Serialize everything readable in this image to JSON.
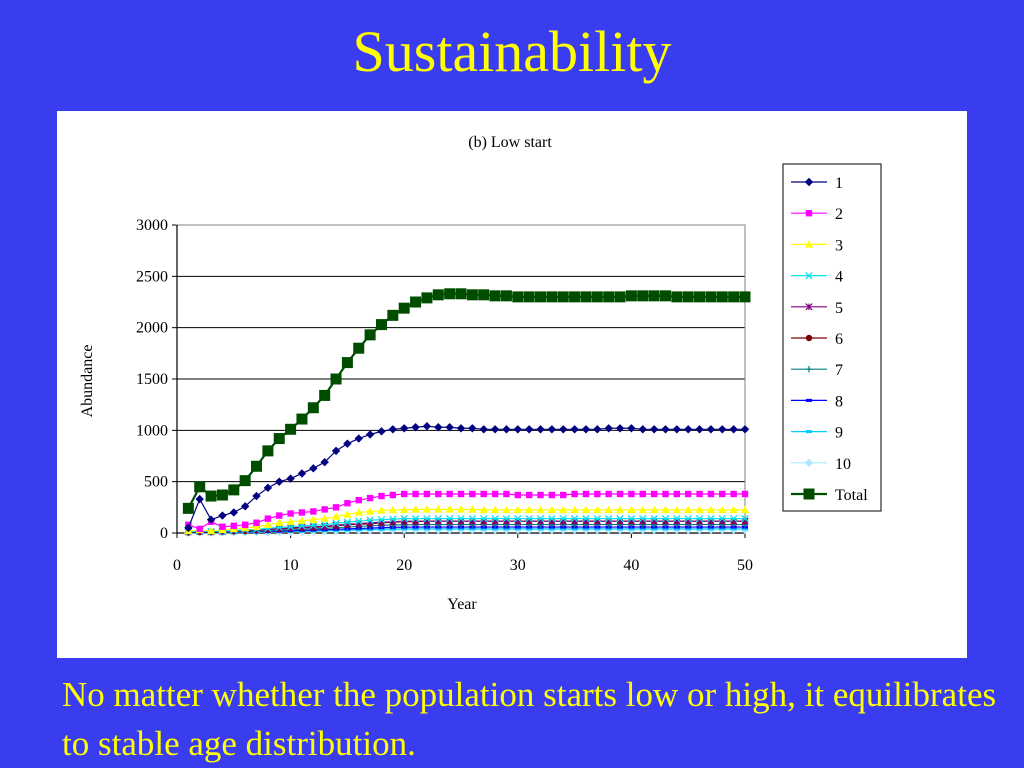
{
  "slide": {
    "title": "Sustainability",
    "caption": "No matter whether the population starts low or high, it equilibrates to  stable age distribution."
  },
  "chart_data": {
    "type": "line",
    "title": "(b) Low start",
    "xlabel": "Year",
    "ylabel": "Abundance",
    "xlim": [
      0,
      50
    ],
    "ylim": [
      0,
      3000
    ],
    "xticks": [
      0,
      10,
      20,
      30,
      40,
      50
    ],
    "yticks": [
      0,
      500,
      1000,
      1500,
      2000,
      2500,
      3000
    ],
    "grid": "horizontal",
    "legend": "right",
    "x": [
      1,
      2,
      3,
      4,
      5,
      6,
      7,
      8,
      9,
      10,
      11,
      12,
      13,
      14,
      15,
      16,
      17,
      18,
      19,
      20,
      21,
      22,
      23,
      24,
      25,
      26,
      27,
      28,
      29,
      30,
      31,
      32,
      33,
      34,
      35,
      36,
      37,
      38,
      39,
      40,
      41,
      42,
      43,
      44,
      45,
      46,
      47,
      48,
      49,
      50
    ],
    "series": [
      {
        "name": "1",
        "color": "#000080",
        "marker": "diamond",
        "values": [
          50,
          330,
          130,
          170,
          200,
          260,
          360,
          440,
          500,
          530,
          580,
          630,
          690,
          800,
          870,
          920,
          960,
          990,
          1010,
          1020,
          1030,
          1040,
          1030,
          1030,
          1020,
          1020,
          1010,
          1010,
          1010,
          1010,
          1010,
          1010,
          1010,
          1010,
          1010,
          1010,
          1010,
          1020,
          1020,
          1020,
          1010,
          1010,
          1010,
          1010,
          1010,
          1010,
          1010,
          1010,
          1010,
          1010
        ]
      },
      {
        "name": "2",
        "color": "#ff00ff",
        "marker": "square",
        "values": [
          80,
          40,
          110,
          60,
          70,
          80,
          100,
          140,
          170,
          190,
          200,
          210,
          230,
          250,
          290,
          320,
          340,
          360,
          370,
          380,
          380,
          380,
          380,
          380,
          380,
          380,
          380,
          380,
          380,
          370,
          370,
          370,
          370,
          370,
          380,
          380,
          380,
          380,
          380,
          380,
          380,
          380,
          380,
          380,
          380,
          380,
          380,
          380,
          380,
          380
        ]
      },
      {
        "name": "3",
        "color": "#ffff00",
        "marker": "triangle",
        "values": [
          20,
          30,
          20,
          30,
          40,
          50,
          60,
          80,
          100,
          110,
          120,
          130,
          140,
          160,
          180,
          200,
          210,
          220,
          225,
          225,
          230,
          230,
          230,
          230,
          230,
          230,
          225,
          225,
          225,
          225,
          225,
          225,
          225,
          225,
          225,
          225,
          225,
          225,
          225,
          225,
          225,
          225,
          225,
          225,
          225,
          225,
          225,
          225,
          225,
          225
        ]
      },
      {
        "name": "4",
        "color": "#00e5ee",
        "marker": "x",
        "values": [
          10,
          20,
          15,
          20,
          25,
          30,
          35,
          45,
          55,
          60,
          70,
          75,
          80,
          95,
          105,
          115,
          125,
          130,
          135,
          140,
          140,
          140,
          140,
          140,
          140,
          140,
          140,
          140,
          140,
          140,
          140,
          140,
          140,
          140,
          140,
          140,
          140,
          140,
          140,
          140,
          140,
          140,
          140,
          140,
          140,
          140,
          140,
          140,
          140,
          140
        ]
      },
      {
        "name": "5",
        "color": "#800080",
        "marker": "star",
        "values": [
          10,
          15,
          10,
          15,
          20,
          25,
          30,
          35,
          40,
          50,
          55,
          60,
          65,
          75,
          85,
          90,
          100,
          105,
          110,
          115,
          115,
          115,
          115,
          115,
          115,
          115,
          115,
          115,
          115,
          115,
          115,
          115,
          115,
          115,
          115,
          115,
          115,
          115,
          115,
          115,
          115,
          115,
          115,
          115,
          115,
          115,
          115,
          115,
          115,
          115
        ]
      },
      {
        "name": "6",
        "color": "#800000",
        "marker": "circle",
        "values": [
          5,
          10,
          10,
          15,
          20,
          20,
          25,
          35,
          40,
          45,
          50,
          55,
          60,
          70,
          80,
          85,
          90,
          100,
          105,
          110,
          110,
          115,
          115,
          115,
          115,
          115,
          115,
          115,
          115,
          115,
          115,
          115,
          115,
          115,
          115,
          115,
          115,
          115,
          115,
          115,
          115,
          115,
          115,
          115,
          115,
          115,
          115,
          115,
          115,
          115
        ]
      },
      {
        "name": "7",
        "color": "#008080",
        "marker": "plus",
        "values": [
          5,
          10,
          8,
          10,
          12,
          15,
          18,
          22,
          28,
          32,
          36,
          40,
          45,
          52,
          58,
          64,
          70,
          75,
          78,
          80,
          82,
          82,
          82,
          82,
          82,
          82,
          82,
          82,
          82,
          82,
          82,
          82,
          82,
          82,
          82,
          82,
          82,
          82,
          82,
          82,
          82,
          82,
          82,
          82,
          82,
          82,
          82,
          82,
          82,
          82
        ]
      },
      {
        "name": "8",
        "color": "#0000ff",
        "marker": "dash",
        "values": [
          3,
          6,
          5,
          6,
          8,
          10,
          12,
          15,
          18,
          22,
          25,
          28,
          32,
          36,
          40,
          44,
          48,
          52,
          55,
          57,
          58,
          58,
          58,
          58,
          58,
          58,
          58,
          58,
          58,
          58,
          58,
          58,
          58,
          58,
          58,
          58,
          58,
          58,
          58,
          58,
          58,
          58,
          58,
          58,
          58,
          58,
          58,
          58,
          58,
          58
        ]
      },
      {
        "name": "9",
        "color": "#00ccff",
        "marker": "dash",
        "values": [
          2,
          4,
          3,
          4,
          5,
          7,
          9,
          11,
          13,
          16,
          18,
          20,
          23,
          26,
          29,
          32,
          35,
          37,
          39,
          40,
          41,
          41,
          41,
          41,
          41,
          41,
          41,
          41,
          41,
          41,
          41,
          41,
          41,
          41,
          41,
          41,
          41,
          41,
          41,
          41,
          41,
          41,
          41,
          41,
          41,
          41,
          41,
          41,
          41,
          41
        ]
      },
      {
        "name": "10",
        "color": "#aee8ff",
        "marker": "diamond",
        "values": [
          1,
          2,
          2,
          3,
          4,
          5,
          6,
          8,
          10,
          12,
          14,
          16,
          18,
          20,
          22,
          24,
          26,
          28,
          29,
          30,
          30,
          30,
          30,
          30,
          30,
          30,
          30,
          30,
          30,
          30,
          30,
          30,
          30,
          30,
          30,
          30,
          30,
          30,
          30,
          30,
          30,
          30,
          30,
          30,
          30,
          30,
          30,
          30,
          30,
          30
        ]
      },
      {
        "name": "Total",
        "color": "#004d00",
        "marker": "bigsquare",
        "values": [
          240,
          450,
          360,
          370,
          420,
          510,
          650,
          800,
          920,
          1010,
          1110,
          1220,
          1340,
          1500,
          1660,
          1800,
          1930,
          2030,
          2120,
          2190,
          2250,
          2290,
          2320,
          2330,
          2330,
          2320,
          2320,
          2310,
          2310,
          2300,
          2300,
          2300,
          2300,
          2300,
          2300,
          2300,
          2300,
          2300,
          2300,
          2310,
          2310,
          2310,
          2310,
          2300,
          2300,
          2300,
          2300,
          2300,
          2300,
          2300
        ]
      }
    ]
  }
}
